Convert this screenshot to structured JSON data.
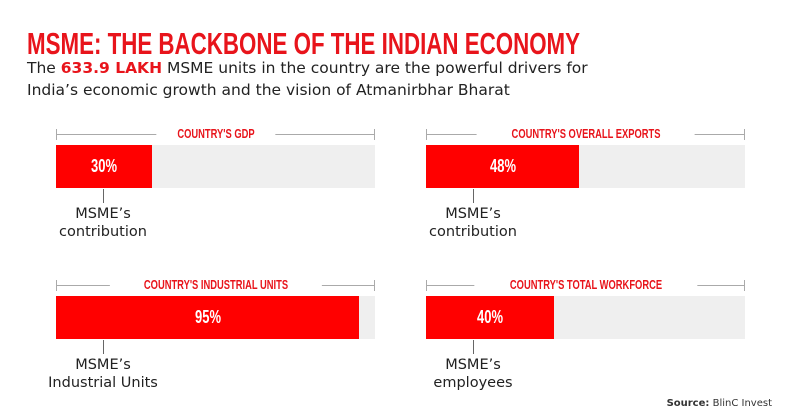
{
  "title": "MSME: THE BACKBONE OF THE INDIAN ECONOMY",
  "subtitle": {
    "pre": "The ",
    "highlight": "633.9 LAKH",
    "post": " MSME units in the country are the powerful drivers for",
    "line2": "India’s economic growth and the vision of Atmanirbhar Bharat"
  },
  "colors": {
    "accent": "#e8141b",
    "bar_fill": "#ff0000",
    "bar_track": "#efefef"
  },
  "chart_data": [
    {
      "type": "bar",
      "title": "COUNTRY'S GDP",
      "value": 30,
      "value_label": "30%",
      "annotation": [
        "MSME’s",
        "contribution"
      ],
      "ylim": [
        0,
        100
      ]
    },
    {
      "type": "bar",
      "title": "COUNTRY'S OVERALL EXPORTS",
      "value": 48,
      "value_label": "48%",
      "annotation": [
        "MSME’s",
        "contribution"
      ],
      "ylim": [
        0,
        100
      ]
    },
    {
      "type": "bar",
      "title": "COUNTRY'S INDUSTRIAL UNITS",
      "value": 95,
      "value_label": "95%",
      "annotation": [
        "MSME’s",
        "Industrial Units"
      ],
      "ylim": [
        0,
        100
      ]
    },
    {
      "type": "bar",
      "title": "COUNTRY'S TOTAL WORKFORCE",
      "value": 40,
      "value_label": "40%",
      "annotation": [
        "MSME’s",
        "employees"
      ],
      "ylim": [
        0,
        100
      ]
    }
  ],
  "source": {
    "label": "Source:",
    "value": "BlinC Invest"
  }
}
